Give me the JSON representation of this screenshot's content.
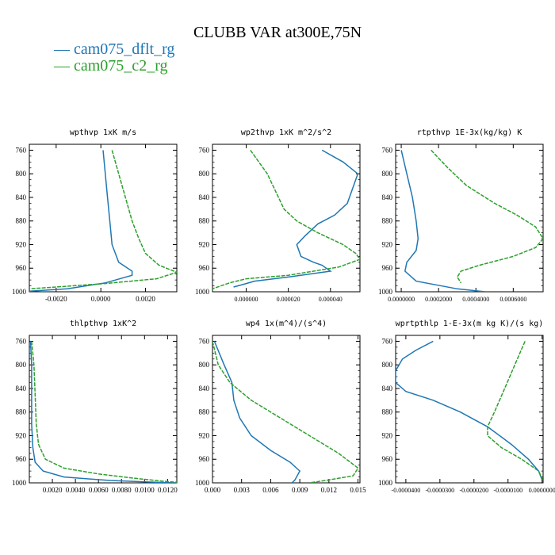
{
  "title": "CLUBB VAR at300E,75N",
  "legend": [
    {
      "label": "— cam075_dflt_rg",
      "color": "#1f77b4"
    },
    {
      "label": "— cam075_c2_rg",
      "color": "#2ca02c"
    }
  ],
  "chart_data": [
    {
      "type": "line",
      "title": "wpthvp  1xK m/s",
      "ylim": [
        1000,
        750
      ],
      "yticks": [
        760,
        800,
        840,
        880,
        920,
        960,
        1000
      ],
      "xlim": [
        -0.0032,
        0.0034
      ],
      "xticks": [
        -0.002,
        0.0,
        0.002
      ],
      "xtick_labels": [
        "-0.0020",
        "0.0000",
        "0.0020"
      ],
      "series": [
        {
          "name": "cam075_dflt_rg",
          "color": "#1f77b4",
          "points": [
            [
              0.0001,
              760
            ],
            [
              0.0002,
              800
            ],
            [
              0.0003,
              840
            ],
            [
              0.0004,
              880
            ],
            [
              0.0005,
              920
            ],
            [
              0.0008,
              950
            ],
            [
              0.0014,
              965
            ],
            [
              0.0014,
              972
            ],
            [
              0.0002,
              985
            ],
            [
              -0.0015,
              995
            ],
            [
              -0.0032,
              999
            ]
          ]
        },
        {
          "name": "cam075_c2_rg",
          "color": "#2ca02c",
          "points": [
            [
              0.0005,
              760
            ],
            [
              0.0008,
              800
            ],
            [
              0.0011,
              840
            ],
            [
              0.0014,
              880
            ],
            [
              0.0017,
              910
            ],
            [
              0.002,
              935
            ],
            [
              0.0026,
              955
            ],
            [
              0.0034,
              967
            ],
            [
              0.0025,
              978
            ],
            [
              0.0002,
              986
            ],
            [
              -0.002,
              992
            ],
            [
              -0.0032,
              995
            ]
          ]
        }
      ]
    },
    {
      "type": "line",
      "title": "wp2thvp  1xK m^2/s^2",
      "ylim": [
        1000,
        750
      ],
      "yticks": [
        760,
        800,
        840,
        880,
        920,
        960,
        1000
      ],
      "xlim": [
        -1.6e-05,
        5.4e-05
      ],
      "xticks": [
        0.0,
        2e-05,
        4e-05
      ],
      "xtick_labels": [
        "0.000000",
        "0.000020",
        "0.000040"
      ],
      "series": [
        {
          "name": "cam075_dflt_rg",
          "color": "#1f77b4",
          "points": [
            [
              3.6e-05,
              760
            ],
            [
              4.6e-05,
              780
            ],
            [
              5.3e-05,
              800
            ],
            [
              5e-05,
              830
            ],
            [
              4.8e-05,
              850
            ],
            [
              4.2e-05,
              870
            ],
            [
              3.4e-05,
              885
            ],
            [
              2.8e-05,
              905
            ],
            [
              2.4e-05,
              920
            ],
            [
              2.6e-05,
              940
            ],
            [
              3.2e-05,
              950
            ],
            [
              3.6e-05,
              955
            ],
            [
              4e-05,
              965
            ],
            [
              2e-05,
              975
            ],
            [
              4e-06,
              982
            ],
            [
              -2e-06,
              988
            ],
            [
              -6e-06,
              992
            ]
          ]
        },
        {
          "name": "cam075_c2_rg",
          "color": "#2ca02c",
          "points": [
            [
              2e-06,
              760
            ],
            [
              1e-05,
              800
            ],
            [
              1.4e-05,
              830
            ],
            [
              1.8e-05,
              860
            ],
            [
              2.4e-05,
              880
            ],
            [
              3.4e-05,
              900
            ],
            [
              4.6e-05,
              920
            ],
            [
              5.2e-05,
              935
            ],
            [
              5.4e-05,
              945
            ],
            [
              4.4e-05,
              958
            ],
            [
              2e-05,
              972
            ],
            [
              0.0,
              978
            ],
            [
              -8e-06,
              985
            ],
            [
              -1.6e-05,
              995
            ]
          ]
        }
      ]
    },
    {
      "type": "line",
      "title": "rtpthvp  1E-3x(kg/kg) K",
      "ylim": [
        1000,
        750
      ],
      "yticks": [
        760,
        800,
        840,
        880,
        920,
        960,
        1000
      ],
      "xlim": [
        -3e-05,
        0.00076
      ],
      "xticks": [
        0.0,
        0.0002,
        0.0004,
        0.0006
      ],
      "xtick_labels": [
        "0.0000000",
        "0.0002000",
        "0.0004000",
        "0.0006000"
      ],
      "series": [
        {
          "name": "cam075_dflt_rg",
          "color": "#1f77b4",
          "points": [
            [
              0.0,
              760
            ],
            [
              3e-05,
              800
            ],
            [
              6e-05,
              840
            ],
            [
              8e-05,
              880
            ],
            [
              9e-05,
              910
            ],
            [
              8e-05,
              930
            ],
            [
              3e-05,
              950
            ],
            [
              2e-05,
              965
            ],
            [
              8e-05,
              982
            ],
            [
              0.0003,
              995
            ],
            [
              0.00045,
              1000
            ]
          ]
        },
        {
          "name": "cam075_c2_rg",
          "color": "#2ca02c",
          "points": [
            [
              0.00016,
              760
            ],
            [
              0.00025,
              790
            ],
            [
              0.00035,
              820
            ],
            [
              0.0005,
              850
            ],
            [
              0.00062,
              870
            ],
            [
              0.00072,
              890
            ],
            [
              0.00076,
              910
            ],
            [
              0.00072,
              925
            ],
            [
              0.0006,
              940
            ],
            [
              0.00042,
              955
            ],
            [
              0.00032,
              965
            ],
            [
              0.0003,
              975
            ],
            [
              0.00032,
              985
            ]
          ]
        }
      ]
    },
    {
      "type": "line",
      "title": "thlpthvp  1xK^2",
      "ylim": [
        1000,
        750
      ],
      "yticks": [
        760,
        800,
        840,
        880,
        920,
        960,
        1000
      ],
      "xlim": [
        0.0,
        0.0128
      ],
      "xticks": [
        0.002,
        0.004,
        0.006,
        0.008,
        0.01,
        0.012
      ],
      "xtick_labels": [
        "0.0020",
        "0.0040",
        "0.0060",
        "0.0080",
        "0.0100",
        "0.0120"
      ],
      "series": [
        {
          "name": "cam075_dflt_rg",
          "color": "#1f77b4",
          "points": [
            [
              0.0001,
              760
            ],
            [
              0.0002,
              800
            ],
            [
              0.0002,
              850
            ],
            [
              0.0002,
              900
            ],
            [
              0.0003,
              940
            ],
            [
              0.0005,
              965
            ],
            [
              0.0012,
              980
            ],
            [
              0.003,
              990
            ],
            [
              0.007,
              996
            ],
            [
              0.011,
              999
            ],
            [
              0.0128,
              1000
            ]
          ]
        },
        {
          "name": "cam075_c2_rg",
          "color": "#2ca02c",
          "points": [
            [
              0.0002,
              760
            ],
            [
              0.0004,
              800
            ],
            [
              0.0005,
              850
            ],
            [
              0.0006,
              900
            ],
            [
              0.0008,
              935
            ],
            [
              0.0014,
              960
            ],
            [
              0.003,
              975
            ],
            [
              0.006,
              985
            ],
            [
              0.009,
              992
            ],
            [
              0.0115,
              997
            ],
            [
              0.0128,
              999
            ]
          ]
        }
      ]
    },
    {
      "type": "line",
      "title": "wp4  1x(m^4)/(s^4)",
      "ylim": [
        1000,
        750
      ],
      "yticks": [
        760,
        800,
        840,
        880,
        920,
        960,
        1000
      ],
      "xlim": [
        0.0,
        0.0152
      ],
      "xticks": [
        0.0,
        0.003,
        0.006,
        0.009,
        0.012,
        0.015
      ],
      "xtick_labels": [
        "0.000",
        "0.003",
        "0.006",
        "0.009",
        "0.012",
        "0.015"
      ],
      "series": [
        {
          "name": "cam075_dflt_rg",
          "color": "#1f77b4",
          "points": [
            [
              0.0002,
              760
            ],
            [
              0.0012,
              800
            ],
            [
              0.002,
              830
            ],
            [
              0.0022,
              860
            ],
            [
              0.0028,
              890
            ],
            [
              0.004,
              920
            ],
            [
              0.006,
              945
            ],
            [
              0.008,
              965
            ],
            [
              0.009,
              980
            ],
            [
              0.0085,
              995
            ],
            [
              0.0082,
              1000
            ]
          ]
        },
        {
          "name": "cam075_c2_rg",
          "color": "#2ca02c",
          "points": [
            [
              0.0,
              760
            ],
            [
              0.0006,
              800
            ],
            [
              0.0018,
              830
            ],
            [
              0.004,
              860
            ],
            [
              0.007,
              890
            ],
            [
              0.01,
              920
            ],
            [
              0.013,
              950
            ],
            [
              0.015,
              975
            ],
            [
              0.0145,
              988
            ],
            [
              0.012,
              995
            ],
            [
              0.01,
              1000
            ]
          ]
        }
      ]
    },
    {
      "type": "line",
      "title": "wprtpthlp  1-E-3x(m kg K)/(s kg)",
      "ylim": [
        1000,
        750
      ],
      "yticks": [
        760,
        800,
        840,
        880,
        920,
        960,
        1000
      ],
      "xlim": [
        -4.3e-05,
        3e-07
      ],
      "xticks": [
        -4e-05,
        -3e-05,
        -2e-05,
        -1e-05,
        0.0
      ],
      "xtick_labels": [
        "-0.0000400",
        "-0.0000300",
        "-0.0000200",
        "-0.0000100",
        "0.0000000"
      ],
      "series": [
        {
          "name": "cam075_dflt_rg",
          "color": "#1f77b4",
          "points": [
            [
              -3.2e-05,
              760
            ],
            [
              -3.7e-05,
              775
            ],
            [
              -4.1e-05,
              790
            ],
            [
              -4.3e-05,
              810
            ],
            [
              -4.3e-05,
              830
            ],
            [
              -4e-05,
              845
            ],
            [
              -3.2e-05,
              860
            ],
            [
              -2.4e-05,
              880
            ],
            [
              -1.6e-05,
              905
            ],
            [
              -9e-06,
              935
            ],
            [
              -4e-06,
              960
            ],
            [
              -1e-06,
              980
            ],
            [
              0.0,
              995
            ]
          ]
        },
        {
          "name": "cam075_c2_rg",
          "color": "#2ca02c",
          "points": [
            [
              -5e-06,
              760
            ],
            [
              -8e-06,
              800
            ],
            [
              -1.1e-05,
              840
            ],
            [
              -1.4e-05,
              880
            ],
            [
              -1.6e-05,
              905
            ],
            [
              -1.6e-05,
              920
            ],
            [
              -1.2e-05,
              940
            ],
            [
              -6e-06,
              960
            ],
            [
              -1e-06,
              980
            ],
            [
              2e-07,
              995
            ]
          ]
        }
      ]
    }
  ]
}
